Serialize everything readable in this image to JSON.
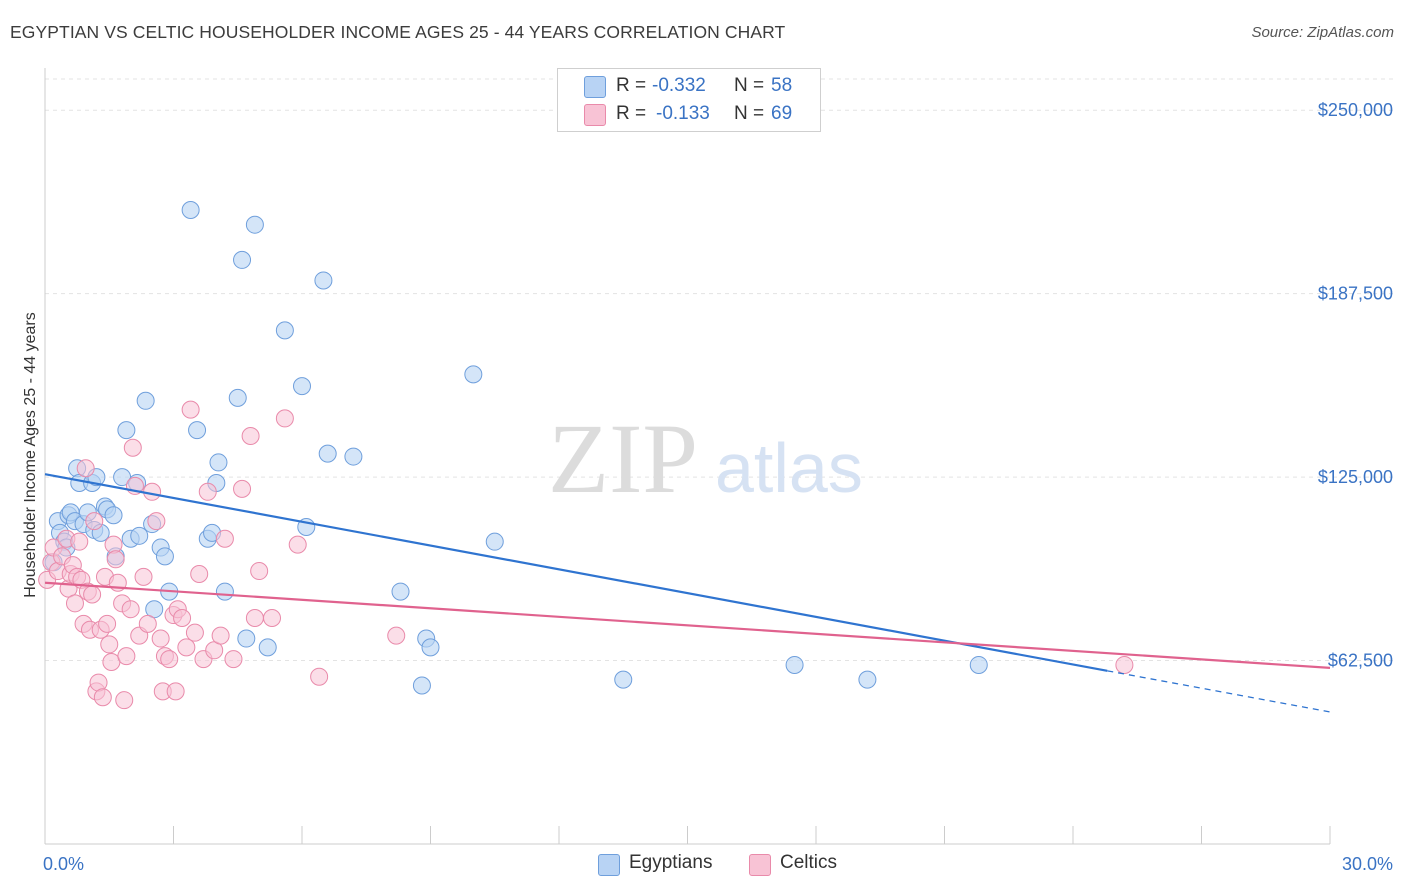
{
  "title": "EGYPTIAN VS CELTIC HOUSEHOLDER INCOME AGES 25 - 44 YEARS CORRELATION CHART",
  "source": "Source: ZipAtlas.com",
  "watermark": {
    "zip": "ZIP",
    "atlas": "atlas"
  },
  "legend": {
    "egyptians": {
      "r_label": "R =",
      "r_value": "-0.332",
      "n_label": "N =",
      "n_value": "58"
    },
    "celtics": {
      "r_label": "R =",
      "r_value": "-0.133",
      "n_label": "N =",
      "n_value": "69"
    }
  },
  "bottom_legend": {
    "egyptians": "Egyptians",
    "celtics": "Celtics"
  },
  "colors": {
    "egyptians_fill": "#b8d3f4",
    "egyptians_stroke": "#6f9fdc",
    "egyptians_line": "#2f74d0",
    "celtics_fill": "#f8c3d5",
    "celtics_stroke": "#e98aaa",
    "celtics_line": "#e0628e",
    "axis_label": "#3a73c4",
    "grid": "#e3e3e3"
  },
  "chart_data": {
    "type": "scatter",
    "ylabel": "Householder Income Ages 25 - 44 years",
    "xlim": [
      0,
      30
    ],
    "ylim": [
      0,
      262000
    ],
    "y_ticks": [
      {
        "value": 62500,
        "label": "$62,500"
      },
      {
        "value": 125000,
        "label": "$125,000"
      },
      {
        "value": 187500,
        "label": "$187,500"
      },
      {
        "value": 250000,
        "label": "$250,000"
      }
    ],
    "x_tick_labels": [
      {
        "value": 0,
        "label": "0.0%"
      },
      {
        "value": 30,
        "label": "30.0%"
      }
    ],
    "x_minor_ticks": [
      0,
      3,
      6,
      9,
      12,
      15,
      18,
      21,
      24,
      27,
      30
    ],
    "grid": true,
    "series": [
      {
        "name": "Egyptians",
        "points": [
          [
            0.2,
            96000
          ],
          [
            0.3,
            110000
          ],
          [
            0.35,
            106000
          ],
          [
            0.45,
            103000
          ],
          [
            0.5,
            101000
          ],
          [
            0.55,
            112000
          ],
          [
            0.6,
            113000
          ],
          [
            0.7,
            110000
          ],
          [
            0.75,
            128000
          ],
          [
            0.8,
            123000
          ],
          [
            0.9,
            109000
          ],
          [
            1.0,
            113000
          ],
          [
            1.1,
            123000
          ],
          [
            1.15,
            107000
          ],
          [
            1.2,
            125000
          ],
          [
            1.3,
            106000
          ],
          [
            1.4,
            115000
          ],
          [
            1.45,
            114000
          ],
          [
            1.6,
            112000
          ],
          [
            1.65,
            98000
          ],
          [
            1.8,
            125000
          ],
          [
            1.9,
            141000
          ],
          [
            2.0,
            104000
          ],
          [
            2.15,
            123000
          ],
          [
            2.2,
            105000
          ],
          [
            2.35,
            151000
          ],
          [
            2.5,
            109000
          ],
          [
            2.55,
            80000
          ],
          [
            2.7,
            101000
          ],
          [
            2.8,
            98000
          ],
          [
            2.9,
            86000
          ],
          [
            3.4,
            216000
          ],
          [
            3.55,
            141000
          ],
          [
            3.8,
            104000
          ],
          [
            3.9,
            106000
          ],
          [
            4.0,
            123000
          ],
          [
            4.05,
            130000
          ],
          [
            4.2,
            86000
          ],
          [
            4.5,
            152000
          ],
          [
            4.6,
            199000
          ],
          [
            4.7,
            70000
          ],
          [
            4.9,
            211000
          ],
          [
            5.2,
            67000
          ],
          [
            5.6,
            175000
          ],
          [
            6.0,
            156000
          ],
          [
            6.1,
            108000
          ],
          [
            6.5,
            192000
          ],
          [
            6.6,
            133000
          ],
          [
            7.2,
            132000
          ],
          [
            8.3,
            86000
          ],
          [
            8.8,
            54000
          ],
          [
            8.9,
            70000
          ],
          [
            9.0,
            67000
          ],
          [
            10.0,
            160000
          ],
          [
            10.5,
            103000
          ],
          [
            13.5,
            56000
          ],
          [
            17.5,
            61000
          ],
          [
            19.2,
            56000
          ],
          [
            21.8,
            61000
          ]
        ]
      },
      {
        "name": "Celtics",
        "points": [
          [
            0.05,
            90000
          ],
          [
            0.15,
            96000
          ],
          [
            0.2,
            101000
          ],
          [
            0.3,
            93000
          ],
          [
            0.4,
            98000
          ],
          [
            0.5,
            104000
          ],
          [
            0.55,
            87000
          ],
          [
            0.6,
            92000
          ],
          [
            0.65,
            95000
          ],
          [
            0.7,
            82000
          ],
          [
            0.75,
            91000
          ],
          [
            0.8,
            103000
          ],
          [
            0.85,
            90000
          ],
          [
            0.9,
            75000
          ],
          [
            0.95,
            128000
          ],
          [
            1.0,
            86000
          ],
          [
            1.05,
            73000
          ],
          [
            1.1,
            85000
          ],
          [
            1.15,
            110000
          ],
          [
            1.2,
            52000
          ],
          [
            1.25,
            55000
          ],
          [
            1.3,
            73000
          ],
          [
            1.35,
            50000
          ],
          [
            1.4,
            91000
          ],
          [
            1.45,
            75000
          ],
          [
            1.5,
            68000
          ],
          [
            1.55,
            62000
          ],
          [
            1.6,
            102000
          ],
          [
            1.65,
            97000
          ],
          [
            1.7,
            89000
          ],
          [
            1.8,
            82000
          ],
          [
            1.85,
            49000
          ],
          [
            1.9,
            64000
          ],
          [
            2.0,
            80000
          ],
          [
            2.05,
            135000
          ],
          [
            2.1,
            122000
          ],
          [
            2.2,
            71000
          ],
          [
            2.3,
            91000
          ],
          [
            2.4,
            75000
          ],
          [
            2.5,
            120000
          ],
          [
            2.6,
            110000
          ],
          [
            2.7,
            70000
          ],
          [
            2.75,
            52000
          ],
          [
            2.8,
            64000
          ],
          [
            2.9,
            63000
          ],
          [
            3.0,
            78000
          ],
          [
            3.05,
            52000
          ],
          [
            3.1,
            80000
          ],
          [
            3.2,
            77000
          ],
          [
            3.3,
            67000
          ],
          [
            3.4,
            148000
          ],
          [
            3.5,
            72000
          ],
          [
            3.6,
            92000
          ],
          [
            3.7,
            63000
          ],
          [
            3.8,
            120000
          ],
          [
            3.95,
            66000
          ],
          [
            4.1,
            71000
          ],
          [
            4.2,
            104000
          ],
          [
            4.4,
            63000
          ],
          [
            4.6,
            121000
          ],
          [
            4.8,
            139000
          ],
          [
            4.9,
            77000
          ],
          [
            5.0,
            93000
          ],
          [
            5.3,
            77000
          ],
          [
            5.6,
            145000
          ],
          [
            5.9,
            102000
          ],
          [
            6.4,
            57000
          ],
          [
            8.2,
            71000
          ],
          [
            25.2,
            61000
          ]
        ]
      }
    ],
    "trend_lines": [
      {
        "series": "Egyptians",
        "solid": [
          [
            0,
            126000
          ],
          [
            24.8,
            59000
          ]
        ],
        "dashed": [
          [
            24.8,
            59000
          ],
          [
            30,
            45000
          ]
        ]
      },
      {
        "series": "Celtics",
        "solid": [
          [
            0,
            89000
          ],
          [
            30,
            60000
          ]
        ]
      }
    ]
  }
}
